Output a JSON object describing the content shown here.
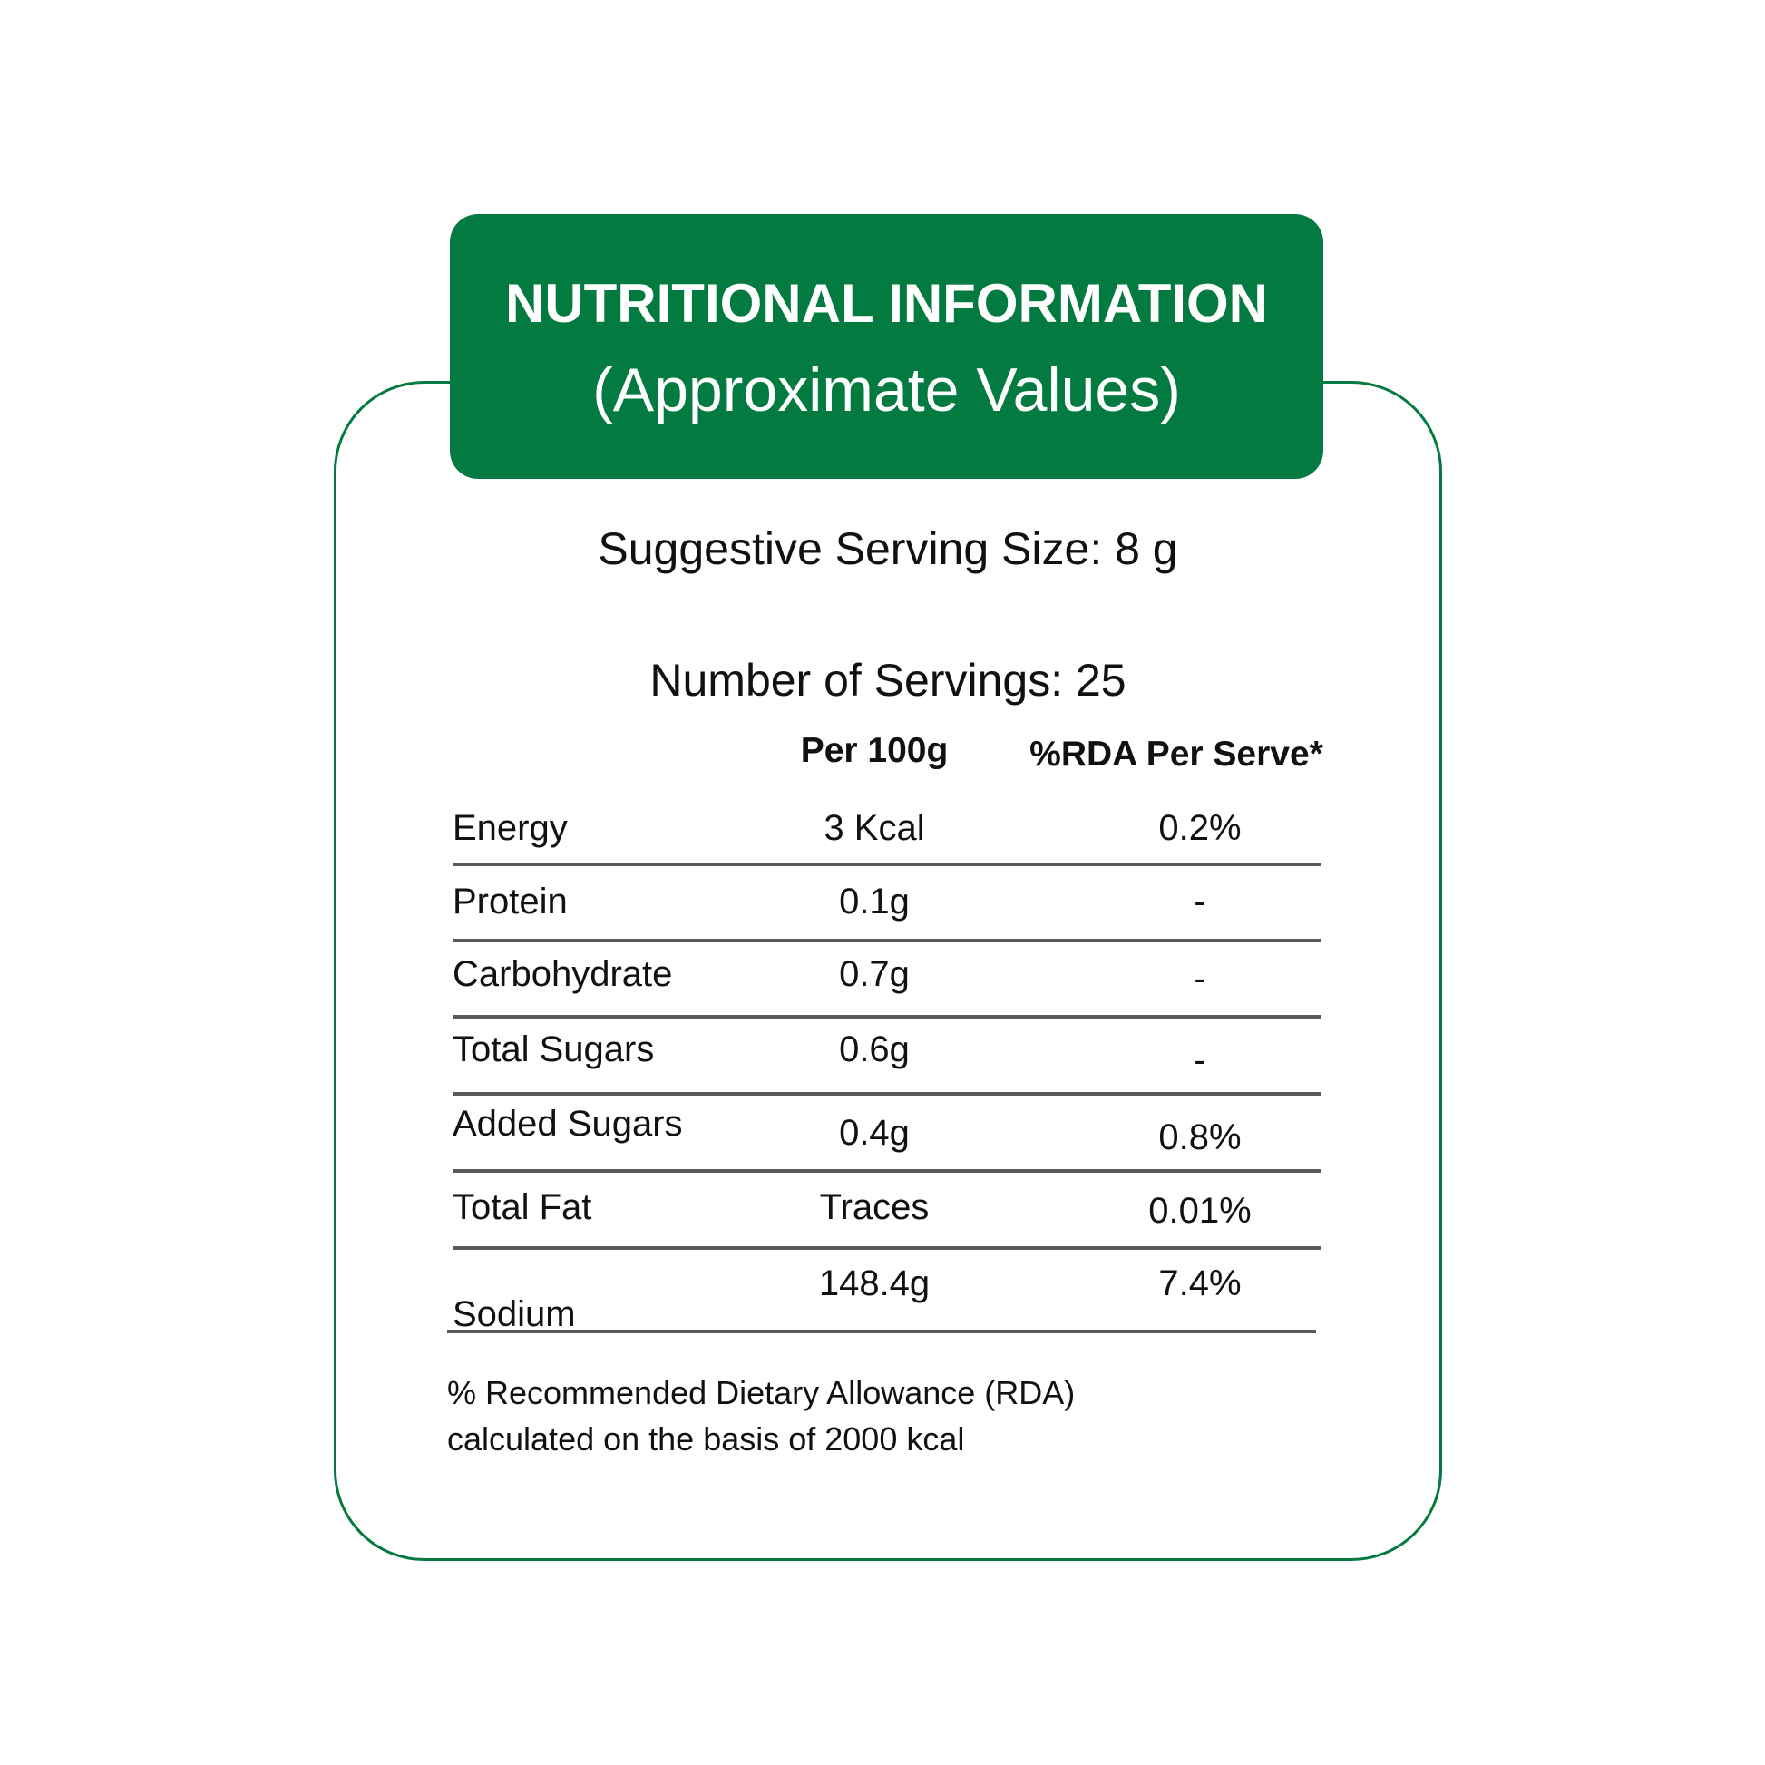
{
  "colors": {
    "brand_green": "#037a40",
    "rule": "#5a5a5a"
  },
  "header": {
    "title": "NUTRITIONAL INFORMATION",
    "subtitle": "(Approximate Values)"
  },
  "serving_size": "Suggestive Serving Size: 8 g",
  "servings": "Number of Servings: 25",
  "table": {
    "columns": [
      "Per 100g",
      "%RDA Per Serve*"
    ],
    "rows": [
      {
        "nutrient": "Energy",
        "per100g": "3 Kcal",
        "rda": "0.2%"
      },
      {
        "nutrient": "Protein",
        "per100g": "0.1g",
        "rda": "-"
      },
      {
        "nutrient": "Carbohydrate",
        "per100g": "0.7g",
        "rda": "-"
      },
      {
        "nutrient": "Total Sugars",
        "per100g": "0.6g",
        "rda": "-"
      },
      {
        "nutrient": "Added Sugars",
        "per100g": "0.4g",
        "rda": "0.8%"
      },
      {
        "nutrient": "Total Fat",
        "per100g": "Traces",
        "rda": "0.01%"
      },
      {
        "nutrient": "Sodium",
        "per100g": "148.4g",
        "rda": "7.4%"
      }
    ]
  },
  "footnote": {
    "line1": "% Recommended Dietary Allowance (RDA)",
    "line2": "calculated on the basis of 2000 kcal"
  }
}
